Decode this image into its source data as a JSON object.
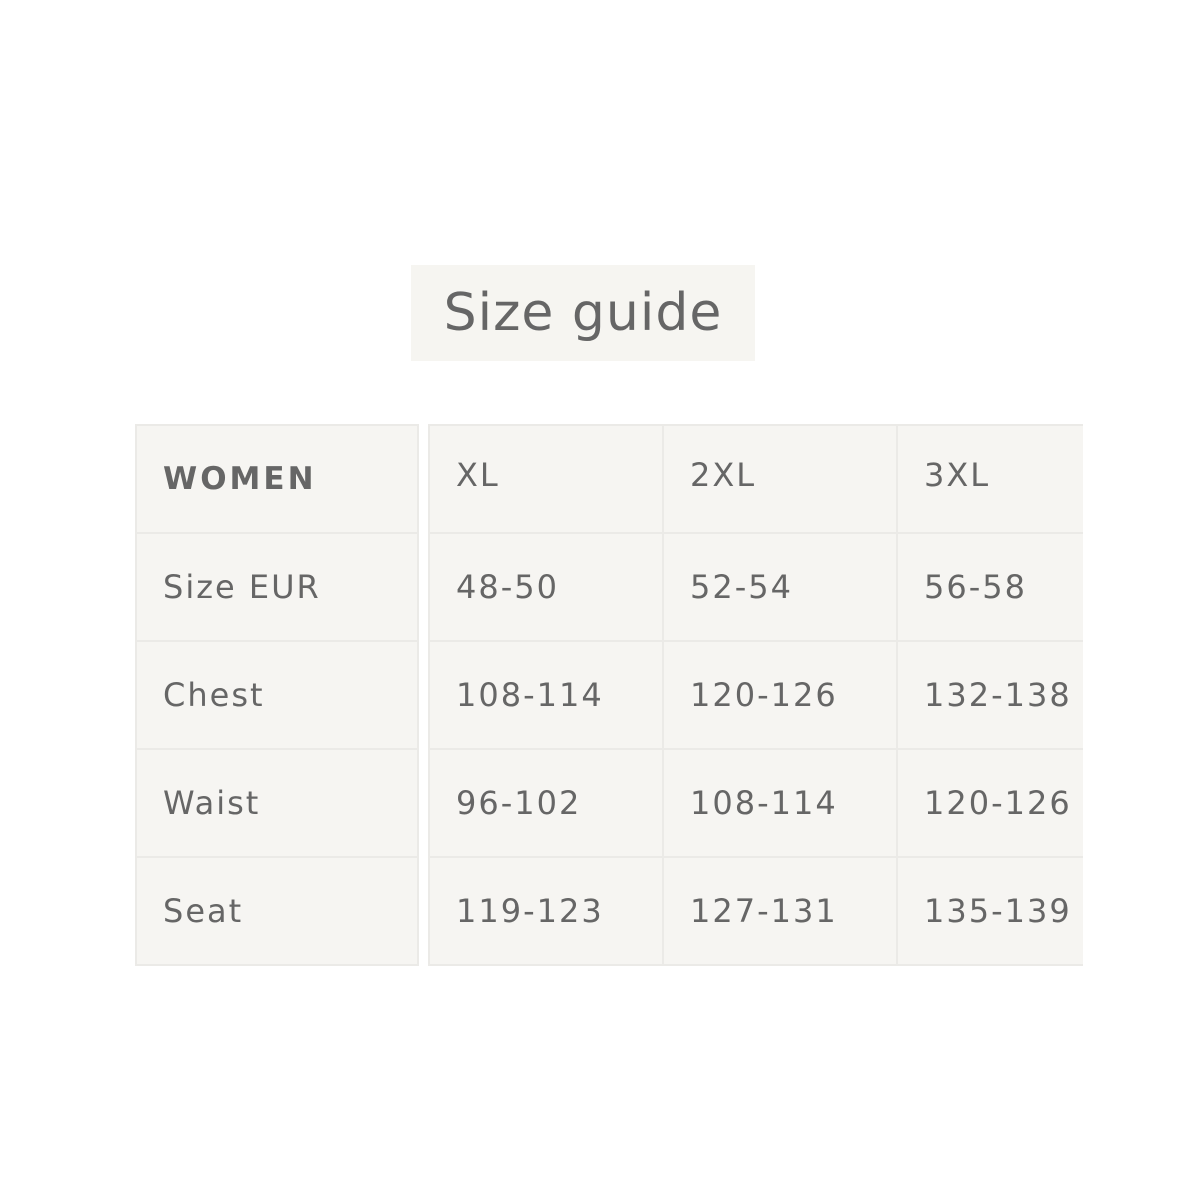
{
  "title": "Size guide",
  "table": {
    "headers": [
      "WOMEN",
      "XL",
      "2XL",
      "3XL"
    ],
    "rows": [
      [
        "Size EUR",
        "48-50",
        "52-54",
        "56-58"
      ],
      [
        "Chest",
        "108-114",
        "120-126",
        "132-138"
      ],
      [
        "Waist",
        "96-102",
        "108-114",
        "120-126"
      ],
      [
        "Seat",
        "119-123",
        "127-131",
        "135-139"
      ]
    ]
  },
  "colors": {
    "cell_background": "#f6f5f2",
    "border": "#ebeae7",
    "text": "#666666"
  }
}
